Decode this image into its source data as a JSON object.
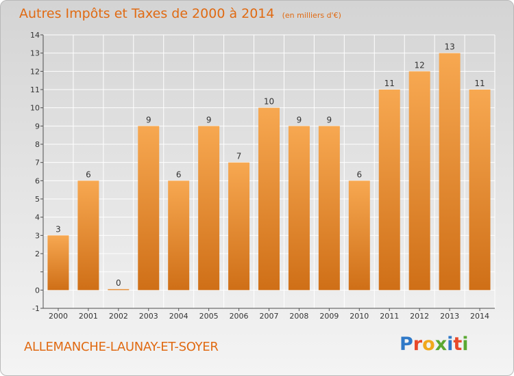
{
  "header": {
    "title": "Autres Impôts et Taxes de 2000 à 2014",
    "subtitle": "(en milliers d'€)"
  },
  "footer": {
    "place": "ALLEMANCHE-LAUNAY-ET-SOYER",
    "logo_text": "Proxiti",
    "logo_letters": [
      {
        "ch": "P",
        "color": "#2f79c8"
      },
      {
        "ch": "r",
        "color": "#e8492a"
      },
      {
        "ch": "o",
        "color": "#f0a81c"
      },
      {
        "ch": "x",
        "color": "#5aa832"
      },
      {
        "ch": "i",
        "color": "#2f79c8"
      },
      {
        "ch": "t",
        "color": "#e8492a"
      },
      {
        "ch": "i",
        "color": "#5aa832"
      }
    ]
  },
  "colors": {
    "title": "#e06a12",
    "bar_light": "#f7a851",
    "bar_dark": "#cf6f17",
    "axis": "#4d4d4d",
    "grid": "#ffffff"
  },
  "chart_data": {
    "type": "bar",
    "categories": [
      "2000",
      "2001",
      "2002",
      "2003",
      "2004",
      "2005",
      "2006",
      "2007",
      "2008",
      "2009",
      "2010",
      "2011",
      "2012",
      "2013",
      "2014"
    ],
    "values": [
      3,
      6,
      0,
      9,
      6,
      9,
      7,
      10,
      9,
      9,
      6,
      11,
      12,
      13,
      11
    ],
    "data_labels": [
      "3",
      "6",
      "0",
      "9",
      "6",
      "9",
      "7",
      "10",
      "9",
      "9",
      "6",
      "11",
      "12",
      "13",
      "11"
    ],
    "title": "Autres Impôts et Taxes de 2000 à 2014",
    "xlabel": "",
    "ylabel": "",
    "ylim": [
      -1,
      14
    ],
    "yticks": [
      -1,
      0,
      1,
      2,
      3,
      4,
      5,
      6,
      7,
      8,
      9,
      10,
      11,
      12,
      13,
      14
    ],
    "ytick_labels": [
      "-1",
      "0",
      "",
      "2",
      "3",
      "4",
      "5",
      "6",
      "7",
      "8",
      "9",
      "10",
      "11",
      "12",
      "13",
      "14"
    ],
    "grid": true,
    "legend": "none"
  }
}
